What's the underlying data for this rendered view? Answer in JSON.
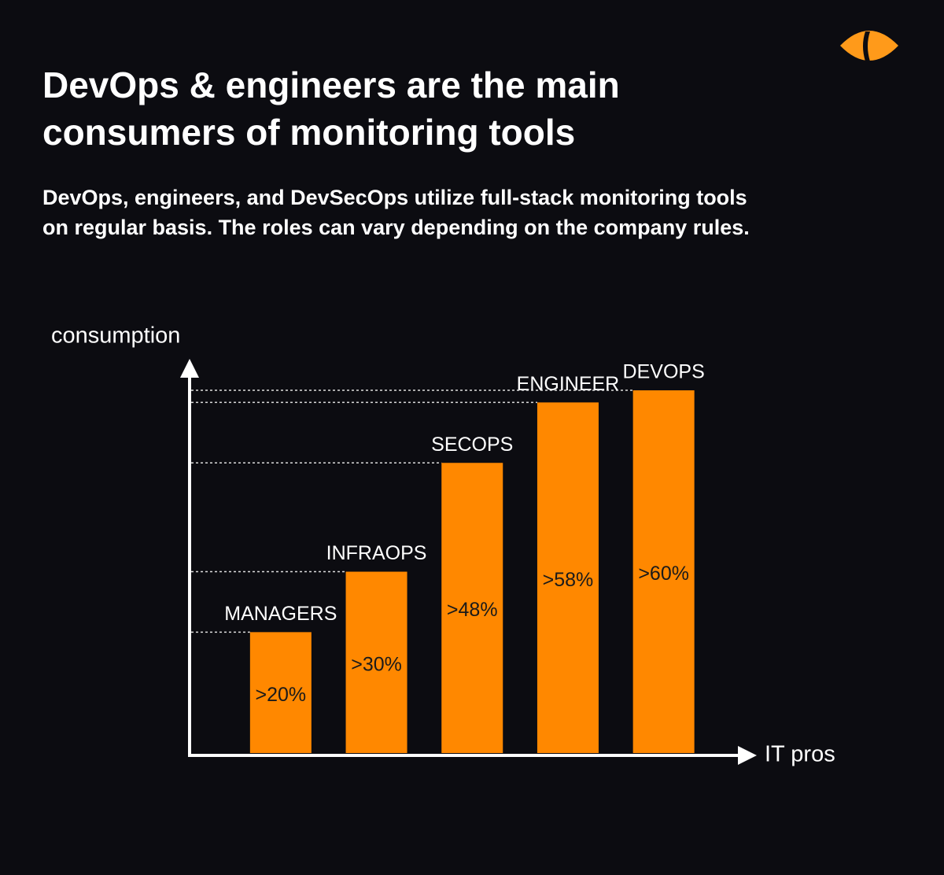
{
  "chart_data": {
    "type": "bar",
    "title": "DevOps & engineers are the main consumers of monitoring tools",
    "subtitle": "DevOps, engineers, and DevSecOps utilize full-stack monitoring tools on regular basis. The roles can vary depending on the company rules.",
    "y_label": "consumption",
    "x_label": "IT pros",
    "categories": [
      "MANAGERS",
      "INFRAOPS",
      "SECOPS",
      "ENGINEER",
      "DEVOPS"
    ],
    "values": [
      20,
      30,
      48,
      58,
      60
    ],
    "value_labels": [
      ">20%",
      ">30%",
      ">48%",
      ">58%",
      ">60%"
    ],
    "color": "#ff8800",
    "ylim": [
      0,
      63
    ]
  }
}
